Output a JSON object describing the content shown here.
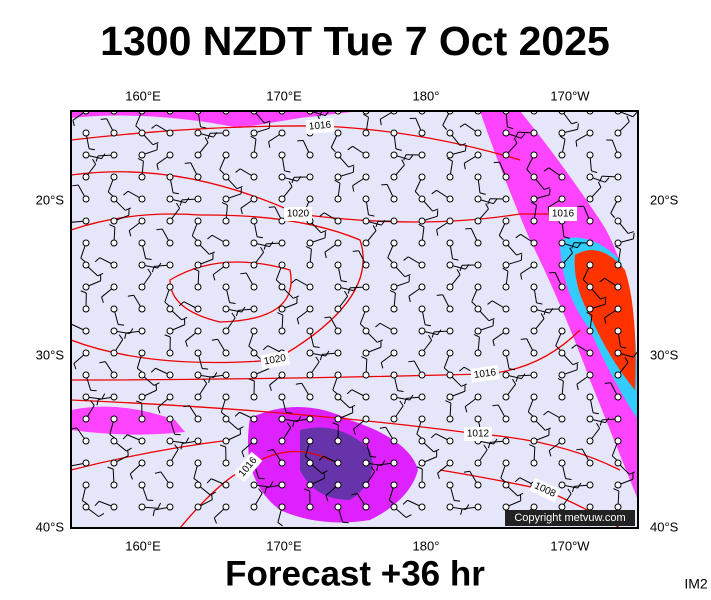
{
  "header": {
    "title": "1300 NZDT Tue 7 Oct 2025"
  },
  "map": {
    "lon_labels_top": [
      "160°E",
      "170°E",
      "180°",
      "170°W"
    ],
    "lon_labels_bottom": [
      "160°E",
      "170°E",
      "180°",
      "170°W"
    ],
    "lat_labels_left": [
      "20°S",
      "30°S",
      "40°S"
    ],
    "lat_labels_right": [
      "20°S",
      "30°S",
      "40°S"
    ],
    "isobar_labels": [
      "1016",
      "1020",
      "1016",
      "1020",
      "1016",
      "1012",
      "1016",
      "1008"
    ],
    "copyright": "Copyright metvuw.com"
  },
  "footer": {
    "forecast": "Forecast +36 hr",
    "code": "IM2"
  }
}
